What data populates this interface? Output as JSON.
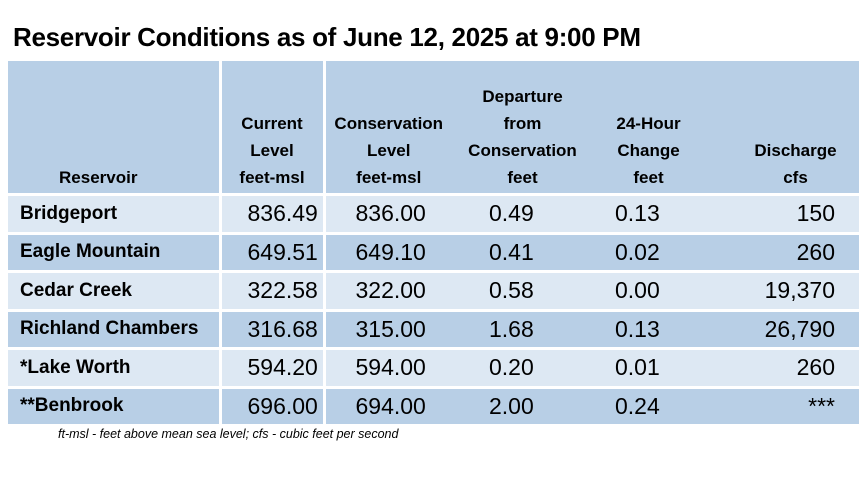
{
  "title": "Reservoir Conditions as of June 12, 2025 at 9:00 PM",
  "table": {
    "headers": [
      {
        "lines": [
          "Reservoir"
        ]
      },
      {
        "lines": [
          "Current",
          "Level",
          "feet-msl"
        ]
      },
      {
        "lines": [
          "Conservation",
          "Level",
          "feet-msl"
        ]
      },
      {
        "lines": [
          "Departure",
          "from",
          "Conservation",
          "feet"
        ]
      },
      {
        "lines": [
          "24-Hour",
          "Change",
          "feet"
        ]
      },
      {
        "lines": [
          "Discharge",
          "cfs"
        ]
      }
    ],
    "rows": [
      {
        "reservoir": "Bridgeport",
        "current": "836.49",
        "conservation": "836.00",
        "departure": "0.49",
        "change": "0.13",
        "discharge": "150"
      },
      {
        "reservoir": "Eagle Mountain",
        "current": "649.51",
        "conservation": "649.10",
        "departure": "0.41",
        "change": "0.02",
        "discharge": "260"
      },
      {
        "reservoir": "Cedar Creek",
        "current": "322.58",
        "conservation": "322.00",
        "departure": "0.58",
        "change": "0.00",
        "discharge": "19,370"
      },
      {
        "reservoir": "Richland Chambers",
        "current": "316.68",
        "conservation": "315.00",
        "departure": "1.68",
        "change": "0.13",
        "discharge": "26,790"
      },
      {
        "reservoir": "*Lake Worth",
        "current": "594.20",
        "conservation": "594.00",
        "departure": "0.20",
        "change": "0.01",
        "discharge": "260"
      },
      {
        "reservoir": "**Benbrook",
        "current": "696.00",
        "conservation": "694.00",
        "departure": "2.00",
        "change": "0.24",
        "discharge": "***"
      }
    ]
  },
  "footnote": "ft-msl - feet above mean sea level; cfs - cubic feet per second",
  "colors": {
    "header_bg": "#b8cfe6",
    "row_light": "#dde8f3",
    "row_dark": "#b8cfe6"
  }
}
